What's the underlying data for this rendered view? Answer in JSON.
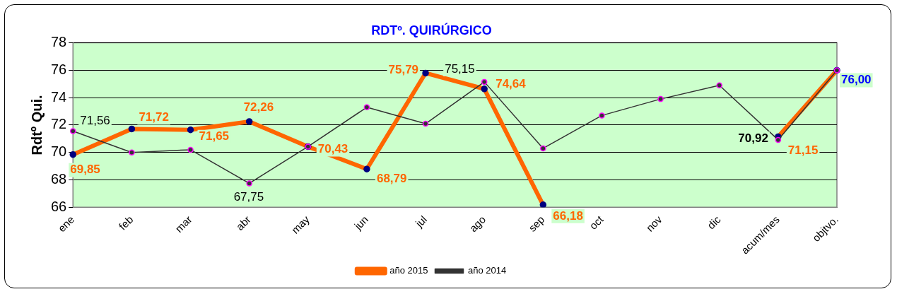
{
  "chart_data": {
    "type": "line",
    "title": "RDTº. QUIRÚRGICO",
    "ylabel": "Rdtº Qui.",
    "categories": [
      "ene",
      "feb",
      "mar",
      "abr",
      "may",
      "jun",
      "jul",
      "ago",
      "sep",
      "oct",
      "nov",
      "dic",
      "acum/mes",
      "objtvo."
    ],
    "series": [
      {
        "name": "año 2015",
        "color": "#ff6600",
        "values": [
          69.85,
          71.72,
          71.65,
          72.26,
          70.43,
          68.79,
          75.79,
          74.64,
          66.18,
          null,
          null,
          null,
          71.15,
          76.0
        ],
        "value_labels": [
          "69,85",
          "71,72",
          "71,65",
          "72,26",
          "70,43",
          "68,79",
          "75,79",
          "74,64",
          "66,18",
          null,
          null,
          null,
          "71,15",
          "76,00"
        ]
      },
      {
        "name": "año 2014",
        "color": "#333333",
        "values": [
          71.56,
          70.0,
          70.2,
          67.75,
          70.43,
          73.3,
          72.1,
          75.15,
          70.3,
          72.7,
          73.9,
          74.9,
          70.92,
          76.0
        ],
        "value_labels": [
          "71,56",
          null,
          null,
          "67,75",
          null,
          null,
          null,
          "75,15",
          null,
          null,
          null,
          null,
          "70,92",
          null
        ]
      }
    ],
    "ylim": [
      66,
      78
    ],
    "yticks": [
      66,
      68,
      70,
      72,
      74,
      76,
      78
    ],
    "grid": "y",
    "legend": "bottom",
    "marker": "circle",
    "line_style": "solid"
  }
}
